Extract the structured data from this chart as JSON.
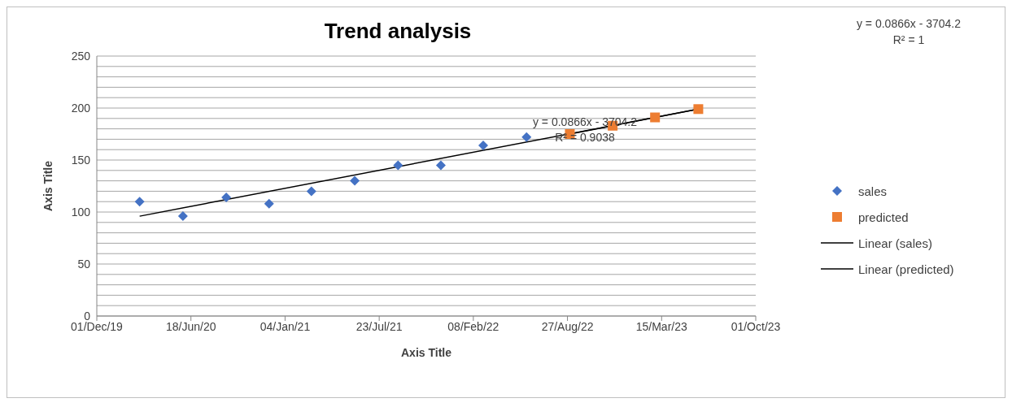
{
  "chart_data": {
    "type": "scatter",
    "title": "Trend analysis",
    "xlabel": "Axis Title",
    "ylabel": "Axis Title",
    "x": [
      "2020-03-01",
      "2020-06-01",
      "2020-09-01",
      "2020-12-01",
      "2021-03-01",
      "2021-06-01",
      "2021-09-01",
      "2021-12-01",
      "2022-03-01",
      "2022-06-01"
    ],
    "series": [
      {
        "name": "sales",
        "marker": "diamond",
        "color": "#4472c4",
        "values": [
          110,
          96,
          114,
          108,
          120,
          130,
          145,
          145,
          164,
          172
        ]
      },
      {
        "name": "predicted",
        "marker": "square",
        "color": "#ed7d31",
        "x": [
          "2022-09-01",
          "2022-12-01",
          "2023-03-01",
          "2023-06-01"
        ],
        "values": [
          175,
          183,
          191,
          199
        ]
      },
      {
        "name": "Linear (sales)",
        "type": "line",
        "marker": "none",
        "line_style": "solid",
        "color": "#000000",
        "x": [
          "2020-03-01",
          "2023-06-01"
        ],
        "values": [
          96,
          199
        ]
      },
      {
        "name": "Linear (predicted)",
        "type": "line",
        "marker": "none",
        "line_style": "solid",
        "color": "#000000",
        "x": [
          "2022-09-01",
          "2023-06-01"
        ],
        "values": [
          175,
          199
        ]
      }
    ],
    "xlim": [
      "2019-12-01",
      "2023-10-01"
    ],
    "xticks": [
      {
        "value": "2019-12-01",
        "label": "01/Dec/19"
      },
      {
        "value": "2020-06-18",
        "label": "18/Jun/20"
      },
      {
        "value": "2021-01-04",
        "label": "04/Jan/21"
      },
      {
        "value": "2021-07-23",
        "label": "23/Jul/21"
      },
      {
        "value": "2022-02-08",
        "label": "08/Feb/22"
      },
      {
        "value": "2022-08-27",
        "label": "27/Aug/22"
      },
      {
        "value": "2023-03-15",
        "label": "15/Mar/23"
      },
      {
        "value": "2023-10-01",
        "label": "01/Oct/23"
      }
    ],
    "ylim": [
      0,
      250
    ],
    "yticks": [
      0,
      {
        "value": 10,
        "label": null
      },
      {
        "value": 20,
        "label": null
      },
      {
        "value": 30,
        "label": null
      },
      {
        "value": 40,
        "label": null
      },
      50,
      {
        "value": 60,
        "label": null
      },
      {
        "value": 70,
        "label": null
      },
      {
        "value": 80,
        "label": null
      },
      {
        "value": 90,
        "label": null
      },
      100,
      {
        "value": 110,
        "label": null
      },
      {
        "value": 120,
        "label": null
      },
      {
        "value": 130,
        "label": null
      },
      {
        "value": 140,
        "label": null
      },
      150,
      {
        "value": 160,
        "label": null
      },
      {
        "value": 170,
        "label": null
      },
      {
        "value": 180,
        "label": null
      },
      {
        "value": 190,
        "label": null
      },
      200,
      {
        "value": 210,
        "label": null
      },
      {
        "value": 220,
        "label": null
      },
      {
        "value": 230,
        "label": null
      },
      {
        "value": 240,
        "label": null
      },
      250
    ],
    "grid": "y",
    "legend": "right",
    "annotations": [
      "y = 0.0866x - 3704.2",
      "R² = 0.9038",
      "y = 0.0866x - 3704.2",
      "R² = 1"
    ]
  }
}
